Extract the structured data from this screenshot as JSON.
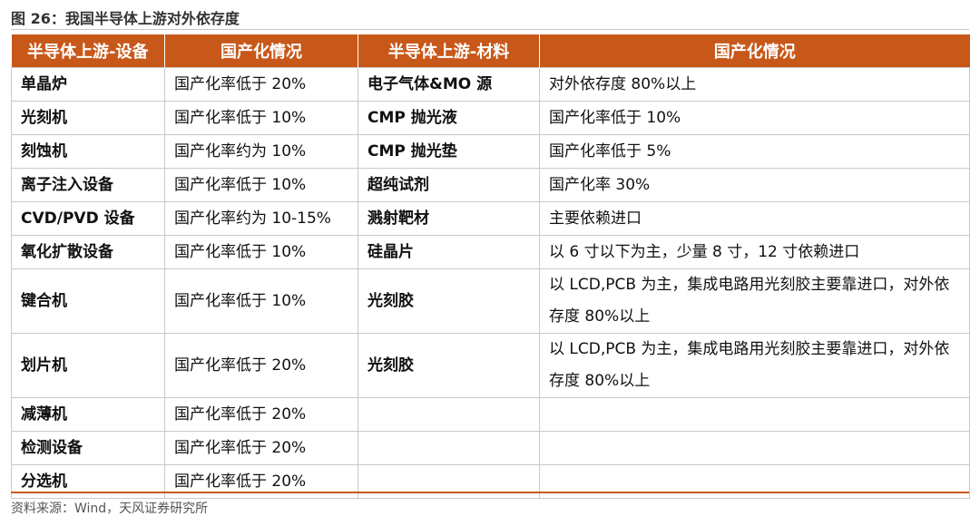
{
  "figure": {
    "title": "图 26：我国半导体上游对外依存度",
    "source": "资料来源：Wind，天风证券研究所"
  },
  "table": {
    "headers": [
      "半导体上游-设备",
      "国产化情况",
      "半导体上游-材料",
      "国产化情况"
    ],
    "rows": [
      [
        "单晶炉",
        "国产化率低于 20%",
        "电子气体&MO 源",
        "对外依存度 80%以上"
      ],
      [
        "光刻机",
        "国产化率低于 10%",
        "CMP 抛光液",
        "国产化率低于 10%"
      ],
      [
        "刻蚀机",
        "国产化率约为 10%",
        "CMP 抛光垫",
        "国产化率低于 5%"
      ],
      [
        "离子注入设备",
        "国产化率低于 10%",
        "超纯试剂",
        "国产化率 30%"
      ],
      [
        "CVD/PVD 设备",
        "国产化率约为 10-15%",
        "溅射靶材",
        "主要依赖进口"
      ],
      [
        "氧化扩散设备",
        "国产化率低于 10%",
        "硅晶片",
        "以 6 寸以下为主，少量 8 寸，12 寸依赖进口"
      ],
      [
        "键合机",
        "国产化率低于 10%",
        "光刻胶",
        "以 LCD,PCB 为主，集成电路用光刻胶主要靠进口，对外依存度 80%以上"
      ],
      [
        "划片机",
        "国产化率低于 20%",
        "光刻胶",
        "以 LCD,PCB 为主，集成电路用光刻胶主要靠进口，对外依存度 80%以上"
      ],
      [
        "减薄机",
        "国产化率低于 20%",
        "",
        ""
      ],
      [
        "检测设备",
        "国产化率低于 20%",
        "",
        ""
      ],
      [
        "分选机",
        "国产化率低于 20%",
        "",
        ""
      ]
    ]
  }
}
